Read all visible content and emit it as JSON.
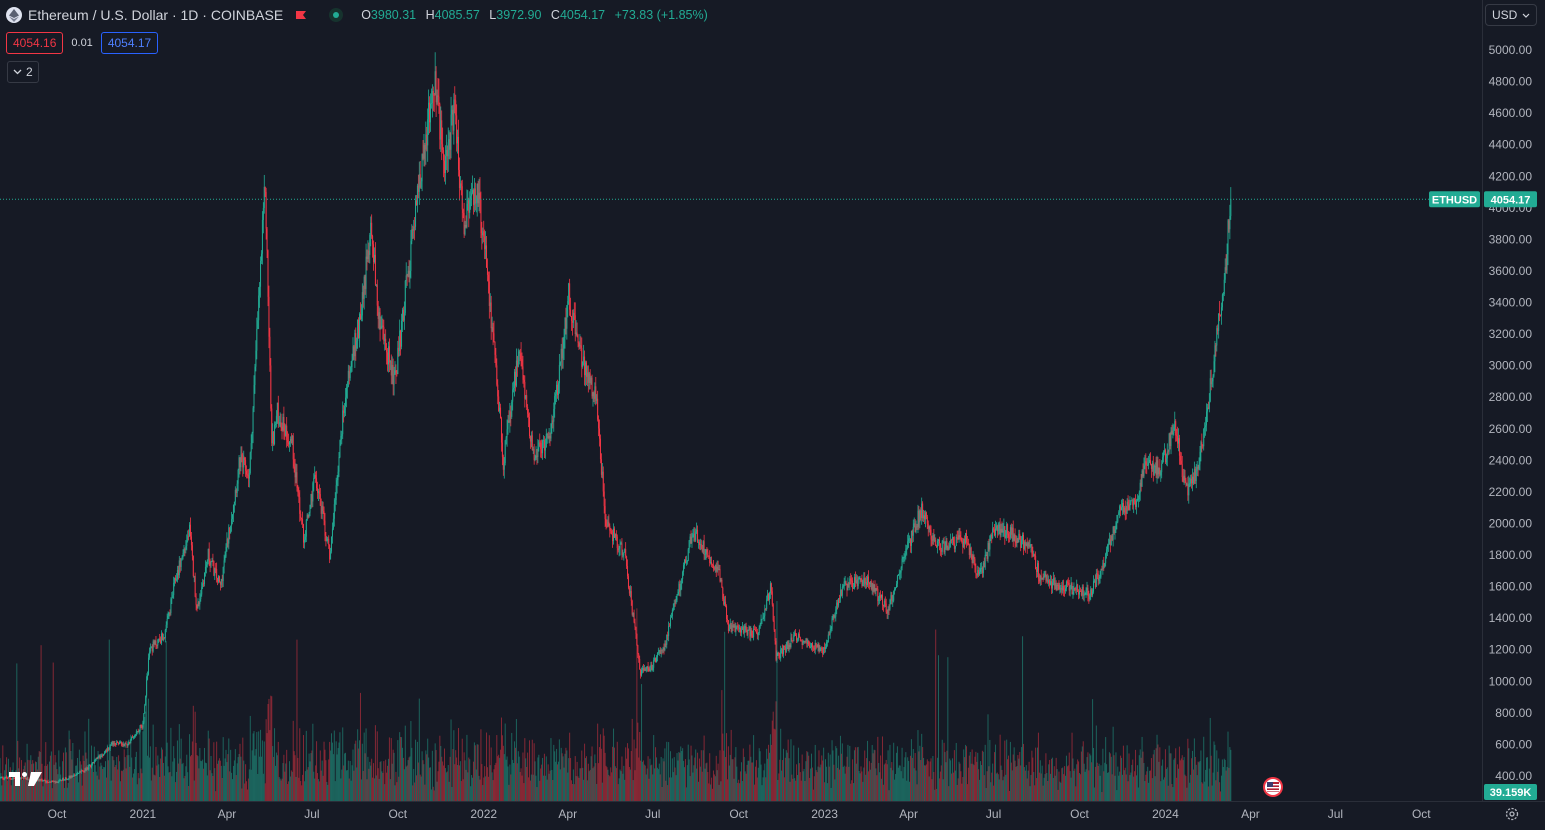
{
  "legend": {
    "symbol_title": "Ethereum / U.S. Dollar · 1D · COINBASE",
    "open_label": "O",
    "open_value": "3980.31",
    "high_label": "H",
    "high_value": "4085.57",
    "low_label": "L",
    "low_value": "3972.90",
    "close_label": "C",
    "close_value": "4054.17",
    "change": "+73.83 (+1.85%)"
  },
  "trade": {
    "sell_price": "4054.16",
    "spread": "0.01",
    "buy_price": "4054.17"
  },
  "indicators_toggle": {
    "count": "2"
  },
  "currency_selector": {
    "value": "USD"
  },
  "price_axis": {
    "ticks": [
      "5000.00",
      "4800.00",
      "4600.00",
      "4400.00",
      "4200.00",
      "4000.00",
      "3800.00",
      "3600.00",
      "3400.00",
      "3200.00",
      "3000.00",
      "2800.00",
      "2600.00",
      "2400.00",
      "2200.00",
      "2000.00",
      "1800.00",
      "1600.00",
      "1400.00",
      "1200.00",
      "1000.00",
      "800.00",
      "600.00",
      "400.00"
    ],
    "symbol_tag": "ETHUSD",
    "last_price_tag": "4054.17",
    "volume_tag": "39.159K"
  },
  "time_axis": {
    "ticks": [
      "Oct",
      "2021",
      "Apr",
      "Jul",
      "Oct",
      "2022",
      "Apr",
      "Jul",
      "Oct",
      "2023",
      "Apr",
      "Jul",
      "Oct",
      "2024",
      "Apr",
      "Jul",
      "Oct"
    ]
  },
  "colors": {
    "background": "#161a25",
    "up": "#22ab94",
    "down": "#f23645",
    "buy": "#2962ff"
  },
  "icons": {
    "logo": "tradingview-logo",
    "flag": "flag-icon",
    "market_status": "market-open-dot",
    "event": "us-flag-event-icon",
    "settings": "gear-icon"
  },
  "chart_data": {
    "type": "candlestick",
    "title": "Ethereum / U.S. Dollar · 1D · COINBASE",
    "interval": "1D",
    "ylim": [
      300,
      5100
    ],
    "scale": "linear",
    "xrange": [
      "2020-08-01",
      "2024-12-05"
    ],
    "grid": false,
    "last_price": 4054.17,
    "waypoints": [
      {
        "date": "2020-08-01",
        "price": 390
      },
      {
        "date": "2020-09-01",
        "price": 380
      },
      {
        "date": "2020-10-01",
        "price": 360
      },
      {
        "date": "2020-11-01",
        "price": 440
      },
      {
        "date": "2020-12-01",
        "price": 610
      },
      {
        "date": "2020-12-15",
        "price": 600
      },
      {
        "date": "2021-01-01",
        "price": 730
      },
      {
        "date": "2021-01-08",
        "price": 1200
      },
      {
        "date": "2021-01-25",
        "price": 1300
      },
      {
        "date": "2021-02-05",
        "price": 1650
      },
      {
        "date": "2021-02-20",
        "price": 1950
      },
      {
        "date": "2021-02-28",
        "price": 1450
      },
      {
        "date": "2021-03-12",
        "price": 1800
      },
      {
        "date": "2021-03-25",
        "price": 1600
      },
      {
        "date": "2021-04-15",
        "price": 2400
      },
      {
        "date": "2021-04-25",
        "price": 2300
      },
      {
        "date": "2021-05-05",
        "price": 3400
      },
      {
        "date": "2021-05-12",
        "price": 4150
      },
      {
        "date": "2021-05-19",
        "price": 2500
      },
      {
        "date": "2021-05-25",
        "price": 2700
      },
      {
        "date": "2021-06-10",
        "price": 2500
      },
      {
        "date": "2021-06-22",
        "price": 1900
      },
      {
        "date": "2021-07-05",
        "price": 2300
      },
      {
        "date": "2021-07-20",
        "price": 1800
      },
      {
        "date": "2021-08-05",
        "price": 2800
      },
      {
        "date": "2021-08-20",
        "price": 3250
      },
      {
        "date": "2021-09-03",
        "price": 3900
      },
      {
        "date": "2021-09-10",
        "price": 3300
      },
      {
        "date": "2021-09-28",
        "price": 2900
      },
      {
        "date": "2021-10-10",
        "price": 3500
      },
      {
        "date": "2021-10-25",
        "price": 4200
      },
      {
        "date": "2021-11-09",
        "price": 4800
      },
      {
        "date": "2021-11-20",
        "price": 4300
      },
      {
        "date": "2021-12-01",
        "price": 4600
      },
      {
        "date": "2021-12-10",
        "price": 3900
      },
      {
        "date": "2021-12-25",
        "price": 4100
      },
      {
        "date": "2022-01-05",
        "price": 3600
      },
      {
        "date": "2022-01-22",
        "price": 2400
      },
      {
        "date": "2022-02-08",
        "price": 3100
      },
      {
        "date": "2022-02-24",
        "price": 2400
      },
      {
        "date": "2022-03-15",
        "price": 2600
      },
      {
        "date": "2022-04-02",
        "price": 3450
      },
      {
        "date": "2022-04-15",
        "price": 3050
      },
      {
        "date": "2022-05-01",
        "price": 2800
      },
      {
        "date": "2022-05-12",
        "price": 2000
      },
      {
        "date": "2022-06-01",
        "price": 1800
      },
      {
        "date": "2022-06-18",
        "price": 1050
      },
      {
        "date": "2022-07-01",
        "price": 1100
      },
      {
        "date": "2022-07-15",
        "price": 1250
      },
      {
        "date": "2022-08-13",
        "price": 1950
      },
      {
        "date": "2022-09-10",
        "price": 1700
      },
      {
        "date": "2022-09-20",
        "price": 1350
      },
      {
        "date": "2022-10-20",
        "price": 1300
      },
      {
        "date": "2022-11-05",
        "price": 1600
      },
      {
        "date": "2022-11-10",
        "price": 1150
      },
      {
        "date": "2022-12-01",
        "price": 1280
      },
      {
        "date": "2022-12-31",
        "price": 1200
      },
      {
        "date": "2023-01-20",
        "price": 1600
      },
      {
        "date": "2023-02-15",
        "price": 1650
      },
      {
        "date": "2023-03-10",
        "price": 1450
      },
      {
        "date": "2023-03-25",
        "price": 1750
      },
      {
        "date": "2023-04-15",
        "price": 2100
      },
      {
        "date": "2023-05-01",
        "price": 1850
      },
      {
        "date": "2023-06-01",
        "price": 1900
      },
      {
        "date": "2023-06-15",
        "price": 1650
      },
      {
        "date": "2023-07-01",
        "price": 1950
      },
      {
        "date": "2023-07-15",
        "price": 1950
      },
      {
        "date": "2023-08-10",
        "price": 1850
      },
      {
        "date": "2023-08-20",
        "price": 1650
      },
      {
        "date": "2023-09-15",
        "price": 1600
      },
      {
        "date": "2023-10-12",
        "price": 1550
      },
      {
        "date": "2023-10-30",
        "price": 1800
      },
      {
        "date": "2023-11-10",
        "price": 2050
      },
      {
        "date": "2023-12-01",
        "price": 2150
      },
      {
        "date": "2023-12-10",
        "price": 2350
      },
      {
        "date": "2023-12-28",
        "price": 2350
      },
      {
        "date": "2024-01-11",
        "price": 2650
      },
      {
        "date": "2024-01-23",
        "price": 2200
      },
      {
        "date": "2024-02-05",
        "price": 2350
      },
      {
        "date": "2024-02-20",
        "price": 2950
      },
      {
        "date": "2024-02-29",
        "price": 3400
      },
      {
        "date": "2024-03-05",
        "price": 3600
      },
      {
        "date": "2024-03-11",
        "price": 4054.17
      }
    ]
  }
}
